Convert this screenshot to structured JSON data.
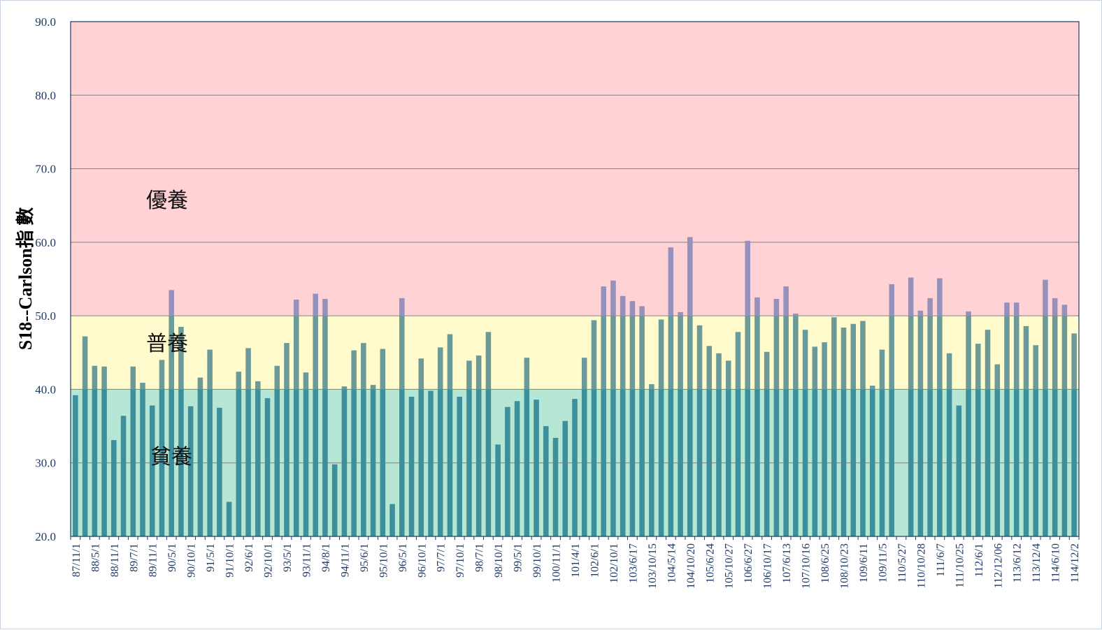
{
  "chart_data": {
    "type": "bar",
    "ylabel": "S18--Carlson指 數",
    "xlabel": "",
    "title": "",
    "ylim": [
      20,
      90
    ],
    "yticks": [
      "20.0",
      "30.0",
      "40.0",
      "50.0",
      "60.0",
      "70.0",
      "80.0",
      "90.0"
    ],
    "grid": true,
    "zones": [
      {
        "label": "貧養",
        "from": 20,
        "to": 40,
        "color": "#b6e7d4"
      },
      {
        "label": "普養",
        "from": 40,
        "to": 50,
        "color": "#fffbcc"
      },
      {
        "label": "優養",
        "from": 50,
        "to": 90,
        "color": "#ffd2d6"
      }
    ],
    "colors": {
      "bar_low": "#3e8f9c",
      "bar_mid": "#6c9a98",
      "bar_high": "#9691ba",
      "axis": "#1f3864",
      "grid": "#808080"
    },
    "tick_labels": [
      "87/11/1",
      "88/5/1",
      "88/11/1",
      "89/7/1",
      "89/11/1",
      "90/5/1",
      "90/10/1",
      "91/5/1",
      "91/10/1",
      "92/6/1",
      "92/10/1",
      "93/5/1",
      "93/11/1",
      "94/8/1",
      "94/11/1",
      "95/6/1",
      "95/10/1",
      "96/5/1",
      "96/10/1",
      "97/7/1",
      "97/10/1",
      "98/7/1",
      "98/10/1",
      "99/5/1",
      "99/10/1",
      "100/11/1",
      "101/4/1",
      "102/6/1",
      "102/10/1",
      "103/6/17",
      "103/10/15",
      "104/5/14",
      "104/10/20",
      "105/6/24",
      "105/10/27",
      "106/6/27",
      "106/10/17",
      "107/6/13",
      "107/10/16",
      "108/6/25",
      "108/10/23",
      "109/6/11",
      "109/11/5",
      "110/5/27",
      "110/10/28",
      "111/6/7",
      "111/10/25",
      "112/6/1",
      "112/12/06",
      "113/6/12",
      "113/12/4",
      "114/6/10",
      "114/12/2"
    ],
    "values": [
      39.2,
      47.2,
      43.2,
      43.1,
      33.1,
      36.4,
      43.1,
      40.9,
      37.8,
      44.0,
      53.5,
      48.5,
      37.7,
      41.6,
      45.4,
      37.5,
      24.7,
      42.4,
      45.6,
      41.1,
      38.8,
      43.2,
      46.3,
      52.2,
      42.3,
      53.0,
      52.3,
      29.8,
      40.4,
      45.3,
      46.3,
      40.6,
      45.5,
      24.4,
      52.4,
      39.0,
      44.2,
      39.8,
      45.7,
      47.5,
      39.0,
      43.9,
      44.6,
      47.8,
      32.5,
      37.6,
      38.4,
      44.3,
      38.6,
      35.0,
      33.4,
      35.7,
      38.7,
      44.3,
      49.4,
      54.0,
      54.8,
      52.7,
      52.0,
      51.3,
      40.7,
      49.5,
      59.3,
      50.5,
      60.7,
      48.7,
      45.9,
      44.9,
      43.9,
      47.8,
      60.2,
      52.5,
      45.1,
      52.3,
      54.0,
      50.3,
      48.1,
      45.8,
      46.4,
      49.8,
      48.4,
      48.9,
      49.3,
      40.5,
      45.4,
      54.3,
      20.0,
      55.2,
      50.7,
      52.4,
      55.1,
      44.9,
      37.8,
      50.6,
      46.2,
      48.1,
      43.4,
      51.8,
      51.8,
      48.6,
      46.0,
      54.9,
      52.4,
      51.5,
      47.6
    ]
  }
}
